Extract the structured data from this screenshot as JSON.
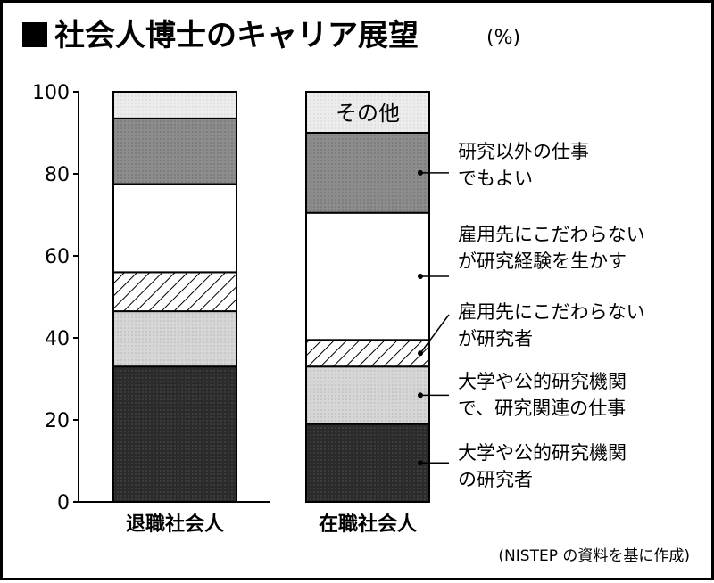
{
  "chart_data": {
    "type": "bar",
    "stacked": true,
    "title": "社会人博士のキャリア展望",
    "unit": "(%)",
    "categories": [
      "退職社会人",
      "在職社会人"
    ],
    "ylim": [
      0,
      100
    ],
    "yticks": [
      0,
      20,
      40,
      60,
      80,
      100
    ],
    "series": [
      {
        "name": "大学や公的研究機関の研究者",
        "values": [
          33,
          19
        ],
        "fill": "#2b2b2b"
      },
      {
        "name": "大学や公的研究機関で、研究関連の仕事",
        "values": [
          13.5,
          14
        ],
        "fill": "#d6d6d6"
      },
      {
        "name": "雇用先にこだわらないが研究者",
        "values": [
          9.5,
          6.5
        ],
        "fill": "hatch"
      },
      {
        "name": "雇用先にこだわらないが研究経験を生かす",
        "values": [
          21.5,
          31
        ],
        "fill": "#ffffff"
      },
      {
        "name": "研究以外の仕事でもよい",
        "values": [
          16,
          19.5
        ],
        "fill": "#8c8c8c"
      },
      {
        "name": "その他",
        "values": [
          6.5,
          10
        ],
        "fill": "#e8e8e8"
      }
    ],
    "legend_lines": [
      [
        "研究以外の仕事",
        "でもよい"
      ],
      [
        "雇用先にこだわらない",
        "が研究経験を生かす"
      ],
      [
        "雇用先にこだわらない",
        "が研究者"
      ],
      [
        "大学や公的研究機関",
        "で、研究関連の仕事"
      ],
      [
        "大学や公的研究機関",
        "の研究者"
      ]
    ],
    "inbar_label": "その他",
    "source": "(NISTEP の資料を基に作成)"
  }
}
